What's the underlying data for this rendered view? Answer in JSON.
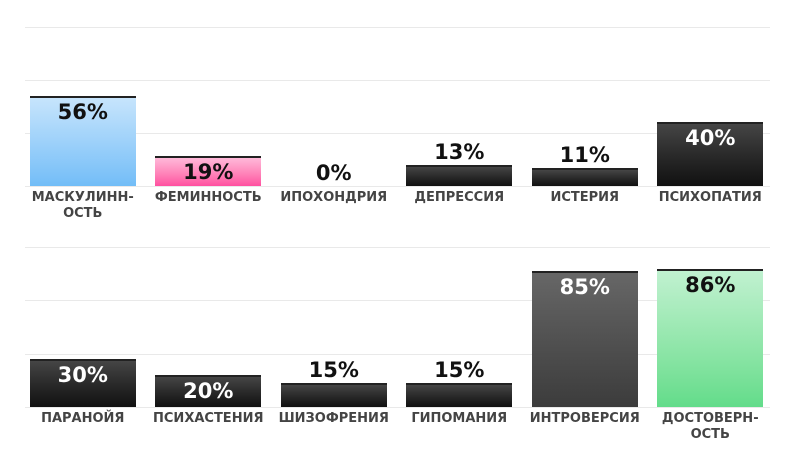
{
  "chart_data": [
    {
      "type": "bar",
      "categories": [
        "МАСКУЛИНН-\nОСТЬ",
        "ФЕМИННОСТЬ",
        "ИПОХОНДРИЯ",
        "ДЕПРЕССИЯ",
        "ИСТЕРИЯ",
        "ПСИХОПАТИЯ"
      ],
      "values": [
        56,
        19,
        0,
        13,
        11,
        40
      ],
      "value_labels": [
        "56%",
        "19%",
        "0%",
        "13%",
        "11%",
        "40%"
      ],
      "colors": [
        "#72bdf7",
        "#ff4fa0",
        "#111111",
        "#111111",
        "#111111",
        "#111111"
      ],
      "ylim": [
        0,
        100
      ]
    },
    {
      "type": "bar",
      "categories": [
        "ПАРАНОЙЯ",
        "ПСИХАСТЕНИЯ",
        "ШИЗОФРЕНИЯ",
        "ГИПОМАНИЯ",
        "ИНТРОВЕРСИЯ",
        "ДОСТОВЕРН-\nОСТЬ"
      ],
      "values": [
        30,
        20,
        15,
        15,
        85,
        86
      ],
      "value_labels": [
        "30%",
        "20%",
        "15%",
        "15%",
        "85%",
        "86%"
      ],
      "colors": [
        "#111111",
        "#111111",
        "#111111",
        "#111111",
        "#3c3c3c",
        "#62dc8a"
      ],
      "ylim": [
        0,
        100
      ]
    }
  ]
}
